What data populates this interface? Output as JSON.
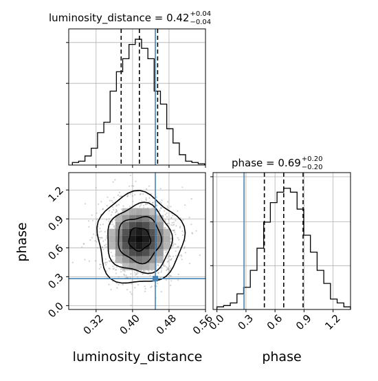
{
  "chart_data": {
    "type": "corner-plot",
    "parameters": [
      "luminosity_distance",
      "phase"
    ],
    "truths": {
      "luminosity_distance": 0.45,
      "phase": 0.28
    },
    "panels": [
      {
        "id": "luminosity_distance-marginal",
        "type": "histogram-step",
        "title_parts": {
          "label": "luminosity_distance",
          "median": "0.42",
          "plus": "+0.04",
          "minus": "−0.04"
        },
        "xlim": [
          0.26,
          0.56
        ],
        "bin_edges": [
          0.268,
          0.2818,
          0.2956,
          0.3094,
          0.3232,
          0.337,
          0.3508,
          0.3646,
          0.3784,
          0.3922,
          0.406,
          0.4198,
          0.4336,
          0.4474,
          0.4612,
          0.475,
          0.4888,
          0.5026,
          0.5164,
          0.5302,
          0.544,
          0.558
        ],
        "counts": [
          0.02,
          0.03,
          0.07,
          0.13,
          0.25,
          0.33,
          0.57,
          0.72,
          0.82,
          0.93,
          0.97,
          0.9,
          0.82,
          0.57,
          0.47,
          0.28,
          0.17,
          0.08,
          0.03,
          0.02,
          0.01
        ],
        "quantiles": [
          0.375,
          0.415,
          0.455
        ],
        "truth": 0.45
      },
      {
        "id": "phase-marginal",
        "type": "histogram-step",
        "title_parts": {
          "label": "phase",
          "median": "0.69",
          "plus": "+0.20",
          "minus": "−0.20"
        },
        "xlim": [
          -0.04,
          1.38
        ],
        "bin_edges": [
          0.0,
          0.069,
          0.138,
          0.207,
          0.276,
          0.345,
          0.414,
          0.483,
          0.552,
          0.621,
          0.69,
          0.759,
          0.828,
          0.897,
          0.966,
          1.035,
          1.104,
          1.173,
          1.242,
          1.311,
          1.38
        ],
        "counts": [
          0.02,
          0.03,
          0.05,
          0.12,
          0.17,
          0.3,
          0.47,
          0.67,
          0.82,
          0.9,
          0.93,
          0.9,
          0.77,
          0.57,
          0.44,
          0.3,
          0.2,
          0.08,
          0.05,
          0.02
        ],
        "quantiles": [
          0.49,
          0.69,
          0.89
        ],
        "truth": 0.28,
        "xticks": [
          "0.0",
          "0.3",
          "0.6",
          "0.9",
          "1.2"
        ],
        "xlabel": "phase"
      },
      {
        "id": "joint",
        "type": "2d-density-contour",
        "xlim": [
          0.26,
          0.56
        ],
        "ylim": [
          -0.04,
          1.38
        ],
        "center": [
          0.415,
          0.69
        ],
        "sigma": [
          0.04,
          0.2
        ],
        "contour_levels_sigma": [
          0.5,
          1.0,
          1.5,
          2.0
        ],
        "truth": [
          0.45,
          0.28
        ],
        "xticks": [
          "0.32",
          "0.40",
          "0.48",
          "0.56"
        ],
        "yticks": [
          "0.0",
          "0.3",
          "0.6",
          "0.9",
          "1.2"
        ],
        "xlabel": "luminosity_distance",
        "ylabel": "phase"
      }
    ],
    "grid": true,
    "truth_color": "#4682b4",
    "quantile_style": "dashed"
  }
}
